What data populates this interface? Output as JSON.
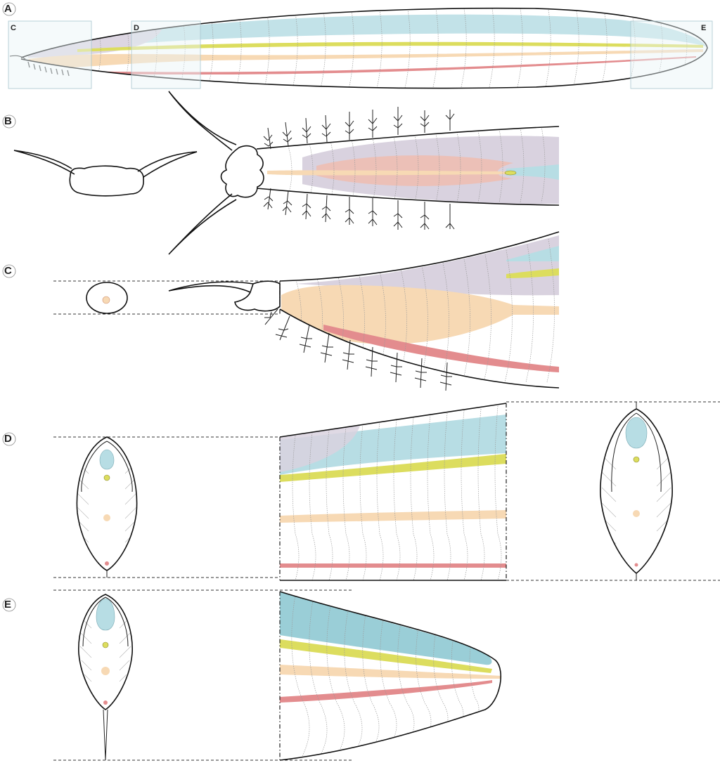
{
  "figure": {
    "panel_labels": [
      "A",
      "B",
      "C",
      "D",
      "E"
    ],
    "inset_box_labels": [
      "C",
      "D",
      "E"
    ]
  },
  "colors": {
    "fin_blue": "#b7dde4",
    "notochord_yellow": "#dcdd5e",
    "gut_orange": "#f7d9b4",
    "vessel_red": "#e38c8e",
    "head_purple": "#d9d2df",
    "pink_organ": "#eebdb0",
    "outline": "#111111",
    "myomere_grey": "#9a9a9a",
    "inset_box": "#e9f3f6"
  }
}
